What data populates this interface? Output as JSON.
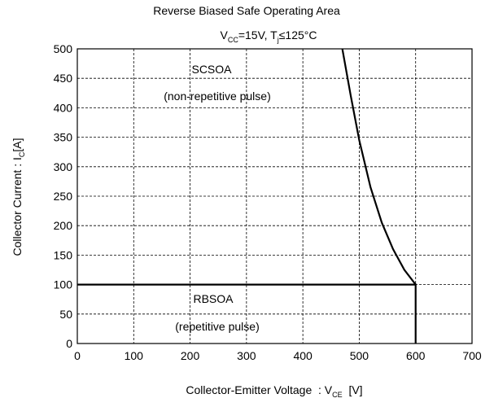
{
  "chart_data": {
    "type": "line",
    "title": "Reverse Biased Safe Operating Area",
    "subtitle": [
      "V",
      "CC",
      "=15V, T",
      "j",
      "≤125°C"
    ],
    "x_label": [
      "Collector-Emitter Voltage  : V",
      "CE",
      "  [V]"
    ],
    "y_label": [
      "Collector Current : I",
      "C",
      "[A]"
    ],
    "annotations": [
      "SCSOA",
      "(non-repetitive pulse)",
      "RBSOA",
      "(repetitive pulse)"
    ],
    "series": [
      {
        "name": "RBSOA",
        "color": "#000000",
        "x": [
          0,
          600,
          600
        ],
        "values": [
          100,
          100,
          0
        ]
      },
      {
        "name": "SCSOA",
        "color": "#000000",
        "x": [
          470,
          485,
          500,
          520,
          540,
          560,
          580,
          600
        ],
        "values": [
          500,
          420,
          345,
          265,
          205,
          160,
          125,
          100
        ]
      }
    ],
    "xlim": [
      0,
      700
    ],
    "xticks": [
      0,
      100,
      200,
      300,
      400,
      500,
      600,
      700
    ],
    "ylim": [
      0,
      500
    ],
    "yticks": [
      0,
      50,
      100,
      150,
      200,
      250,
      300,
      350,
      400,
      450,
      500
    ],
    "grid": true
  }
}
